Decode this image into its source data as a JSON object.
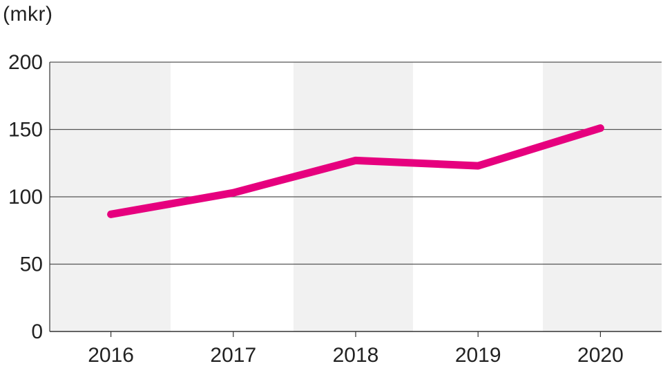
{
  "chart_data": {
    "type": "line",
    "unit_label": "(mkr)",
    "categories": [
      "2016",
      "2017",
      "2018",
      "2019",
      "2020"
    ],
    "series": [
      {
        "values": [
          87,
          103,
          127,
          123,
          151
        ],
        "color": "#e6007e"
      }
    ],
    "ylim": [
      0,
      200
    ],
    "yticks": [
      "0",
      "50",
      "100",
      "150",
      "200"
    ],
    "grid": true,
    "band_color": "#f1f1f1",
    "grid_color": "#555555"
  }
}
